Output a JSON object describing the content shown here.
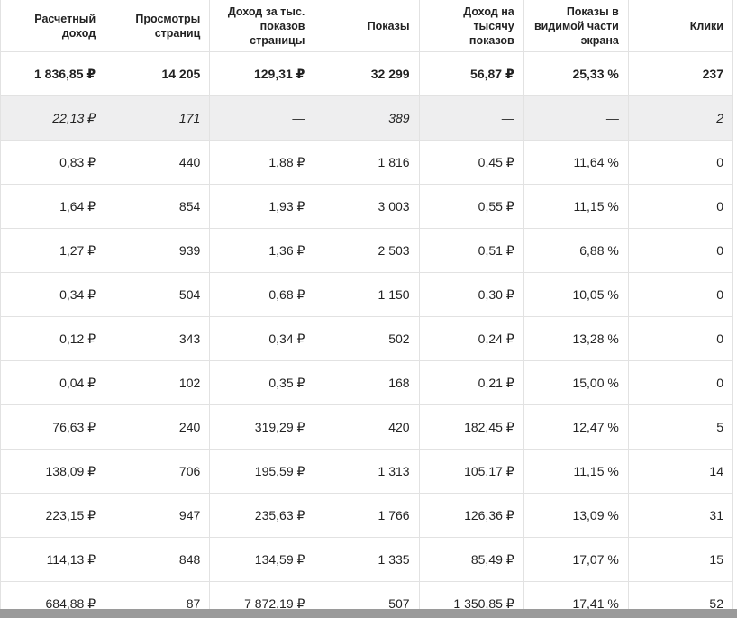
{
  "table": {
    "headers": [
      "Расчетный доход",
      "Просмотры страниц",
      "Доход за тыс. показов страницы",
      "Показы",
      "Доход на тысячу показов",
      "Показы в видимой части экрана",
      "Клики"
    ],
    "rows": [
      [
        "1 836,85 ₽",
        "14 205",
        "129,31 ₽",
        "32 299",
        "56,87 ₽",
        "25,33 %",
        "237"
      ],
      [
        "22,13 ₽",
        "171",
        "—",
        "389",
        "—",
        "—",
        "2"
      ],
      [
        "0,83 ₽",
        "440",
        "1,88 ₽",
        "1 816",
        "0,45 ₽",
        "11,64 %",
        "0"
      ],
      [
        "1,64 ₽",
        "854",
        "1,93 ₽",
        "3 003",
        "0,55 ₽",
        "11,15 %",
        "0"
      ],
      [
        "1,27 ₽",
        "939",
        "1,36 ₽",
        "2 503",
        "0,51 ₽",
        "6,88 %",
        "0"
      ],
      [
        "0,34 ₽",
        "504",
        "0,68 ₽",
        "1 150",
        "0,30 ₽",
        "10,05 %",
        "0"
      ],
      [
        "0,12 ₽",
        "343",
        "0,34 ₽",
        "502",
        "0,24 ₽",
        "13,28 %",
        "0"
      ],
      [
        "0,04 ₽",
        "102",
        "0,35 ₽",
        "168",
        "0,21 ₽",
        "15,00 %",
        "0"
      ],
      [
        "76,63 ₽",
        "240",
        "319,29 ₽",
        "420",
        "182,45 ₽",
        "12,47 %",
        "5"
      ],
      [
        "138,09 ₽",
        "706",
        "195,59 ₽",
        "1 313",
        "105,17 ₽",
        "11,15 %",
        "14"
      ],
      [
        "223,15 ₽",
        "947",
        "235,63 ₽",
        "1 766",
        "126,36 ₽",
        "13,09 %",
        "31"
      ],
      [
        "114,13 ₽",
        "848",
        "134,59 ₽",
        "1 335",
        "85,49 ₽",
        "17,07 %",
        "15"
      ],
      [
        "684,88 ₽",
        "87",
        "7 872,19 ₽",
        "507",
        "1 350,85 ₽",
        "17,41 %",
        "52"
      ]
    ]
  }
}
